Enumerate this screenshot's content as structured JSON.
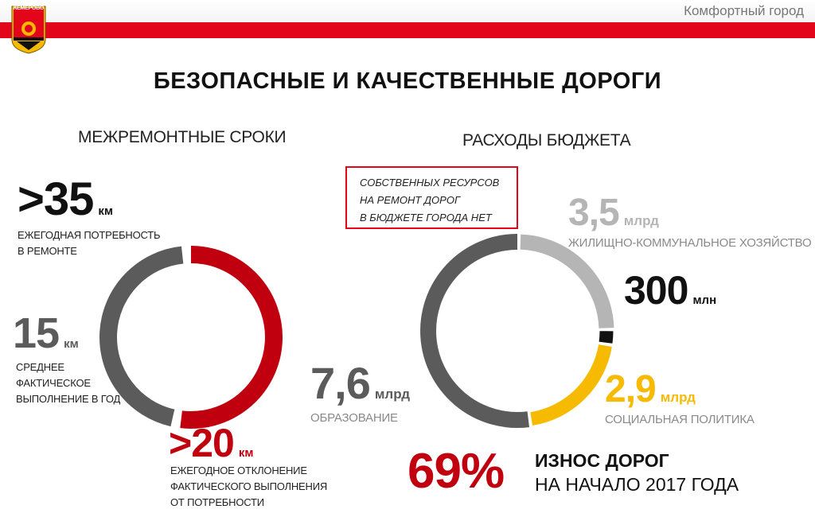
{
  "header": {
    "tagline": "Комфортный город",
    "emblem_text": "КЕМЕРОВО",
    "title": "БЕЗОПАСНЫЕ И КАЧЕСТВЕННЫЕ ДОРОГИ"
  },
  "left": {
    "title": "МЕЖРЕМОНТНЫЕ СРОКИ",
    "need": {
      "value": ">35",
      "unit": "км",
      "caption": [
        "ЕЖЕГОДНАЯ ПОТРЕБНОСТЬ",
        "В РЕМОНТЕ"
      ]
    },
    "actual": {
      "value": "15",
      "unit": "км",
      "caption": [
        "СРЕДНЕЕ",
        "ФАКТИЧЕСКОЕ",
        "ВЫПОЛНЕНИЕ В ГОД"
      ]
    },
    "gap": {
      "value": ">20",
      "unit": "км",
      "caption": [
        "ЕЖЕГОДНОЕ ОТКЛОНЕНИЕ",
        "ФАКТИЧЕСКОГО ВЫПОЛНЕНИЯ",
        "ОТ ПОТРЕБНОСТИ"
      ]
    }
  },
  "right": {
    "title": "РАСХОДЫ БЮДЖЕТА",
    "notice": [
      "СОБСТВЕННЫХ РЕСУРСОВ",
      "НА РЕМОНТ ДОРОГ",
      "В БЮДЖЕТЕ ГОРОДА НЕТ"
    ],
    "housing": {
      "value": "3,5",
      "unit": "млрд",
      "caption": "ЖИЛИЩНО-КОММУНАЛЬНОЕ ХОЗЯЙСТВО"
    },
    "roads": {
      "value": "300",
      "unit": "млн"
    },
    "social": {
      "value": "2,9",
      "unit": "млрд",
      "caption": "СОЦИАЛЬНАЯ ПОЛИТИКА"
    },
    "education": {
      "value": "7,6",
      "unit": "млрд",
      "caption": "ОБРАЗОВАНИЕ"
    }
  },
  "wear": {
    "percent": "69%",
    "line1": "ИЗНОС ДОРОГ",
    "line2": "НА НАЧАЛО 2017 ГОДА"
  },
  "colors": {
    "red": "#e3061b",
    "dark_red": "#c0000f",
    "dark_grey": "#5b5b5b",
    "light_grey": "#b5b5b5",
    "yellow": "#f6bb00",
    "black": "#111111"
  },
  "chart_data": [
    {
      "type": "pie",
      "categories": [
        "среднее фактическое выполнение",
        "ежегодное отклонение"
      ],
      "values": [
        15,
        20
      ],
      "unit": "км"
    },
    {
      "type": "pie",
      "categories": [
        "ОБРАЗОВАНИЕ",
        "ЖИЛИЩНО-КОММУНАЛЬНОЕ ХОЗЯЙСТВО",
        "дороги",
        "СОЦИАЛЬНАЯ ПОЛИТИКА"
      ],
      "values": [
        7.6,
        3.5,
        0.3,
        2.9
      ],
      "unit": "млрд"
    }
  ]
}
